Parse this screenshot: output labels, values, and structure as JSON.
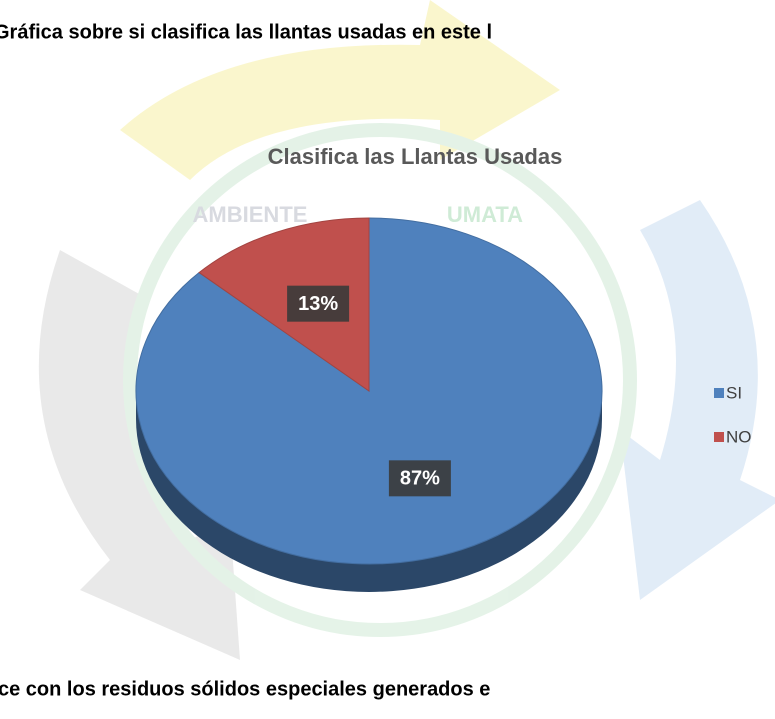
{
  "header": {
    "text": "Gráfica sobre si clasifica las llantas usadas en este l"
  },
  "watermark": {
    "left": "AMBIENTE",
    "right": "UMATA"
  },
  "chart_data": {
    "type": "pie",
    "title": "Clasifica las Llantas Usadas",
    "categories": [
      "SI",
      "NO"
    ],
    "values": [
      87,
      13
    ],
    "value_labels": [
      "87%",
      "13%"
    ],
    "colors": [
      "#4f81bd",
      "#c0504d"
    ],
    "legend": "right"
  },
  "footer": {
    "text": "ce con los residuos sólidos especiales generados e"
  }
}
